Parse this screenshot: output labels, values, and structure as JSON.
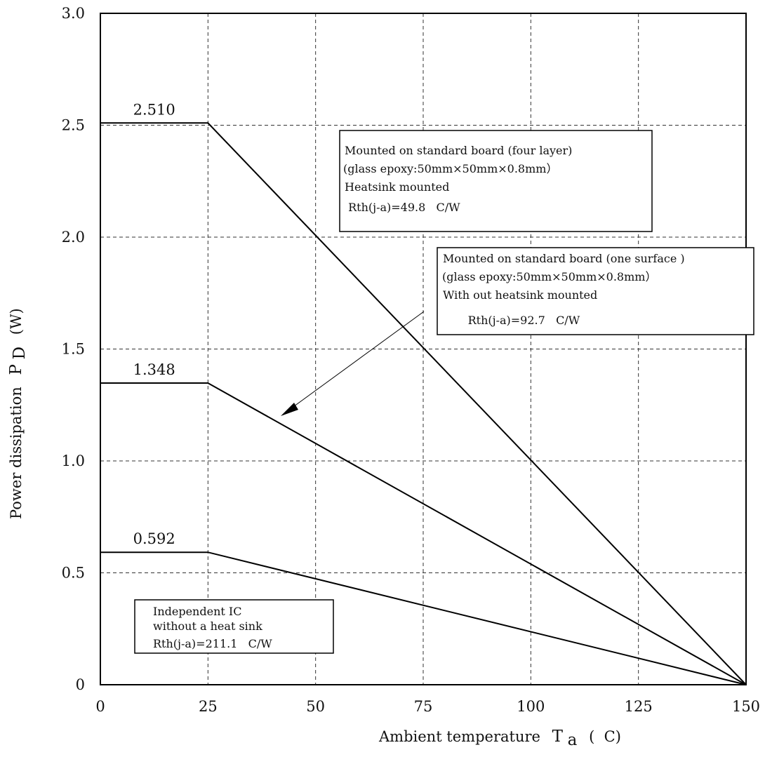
{
  "chart_data": {
    "type": "line",
    "xlabel": "Ambient temperature",
    "xlabel_symbol": "T",
    "xlabel_sub": "a",
    "xlabel_unit": "(  C)",
    "ylabel": "Power dissipation",
    "ylabel_symbol": "P",
    "ylabel_sub": "D",
    "ylabel_unit": "(W)",
    "xlim": [
      0,
      150
    ],
    "ylim": [
      0,
      3.0
    ],
    "xticks": [
      0,
      25,
      50,
      75,
      100,
      125,
      150
    ],
    "xtick_labels": [
      "0",
      "25",
      "50",
      "75",
      "100",
      "125",
      "150"
    ],
    "yticks": [
      0,
      0.5,
      1.0,
      1.5,
      2.0,
      2.5,
      3.0
    ],
    "ytick_labels": [
      "0",
      "0.5",
      "1.0",
      "1.5",
      "2.0",
      "2.5",
      "3.0"
    ],
    "grid": true,
    "series": [
      {
        "points": [
          [
            0,
            2.51
          ],
          [
            25,
            2.51
          ],
          [
            150,
            0
          ]
        ],
        "label": "2.510"
      },
      {
        "points": [
          [
            0,
            1.348
          ],
          [
            25,
            1.348
          ],
          [
            150,
            0
          ]
        ],
        "label": "1.348"
      },
      {
        "points": [
          [
            0,
            0.592
          ],
          [
            25,
            0.592
          ],
          [
            150,
            0
          ]
        ],
        "label": "0.592"
      }
    ],
    "annotations": [
      {
        "lines": [
          "Mounted on standard board (four layer)",
          "(glass epoxy:50mm×50mm×0.8mm）",
          "Heatsink mounted",
          " Rth(j-a)=49.8   C/W"
        ]
      },
      {
        "lines": [
          "Mounted on standard board (one surface )",
          "(glass epoxy:50mm×50mm×0.8mm）",
          "With out heatsink mounted",
          "       Rth(j-a)=92.7   C/W"
        ]
      },
      {
        "lines": [
          "Independent IC",
          "without a heat sink",
          "Rth(j-a)=211.1   C/W"
        ]
      }
    ]
  }
}
